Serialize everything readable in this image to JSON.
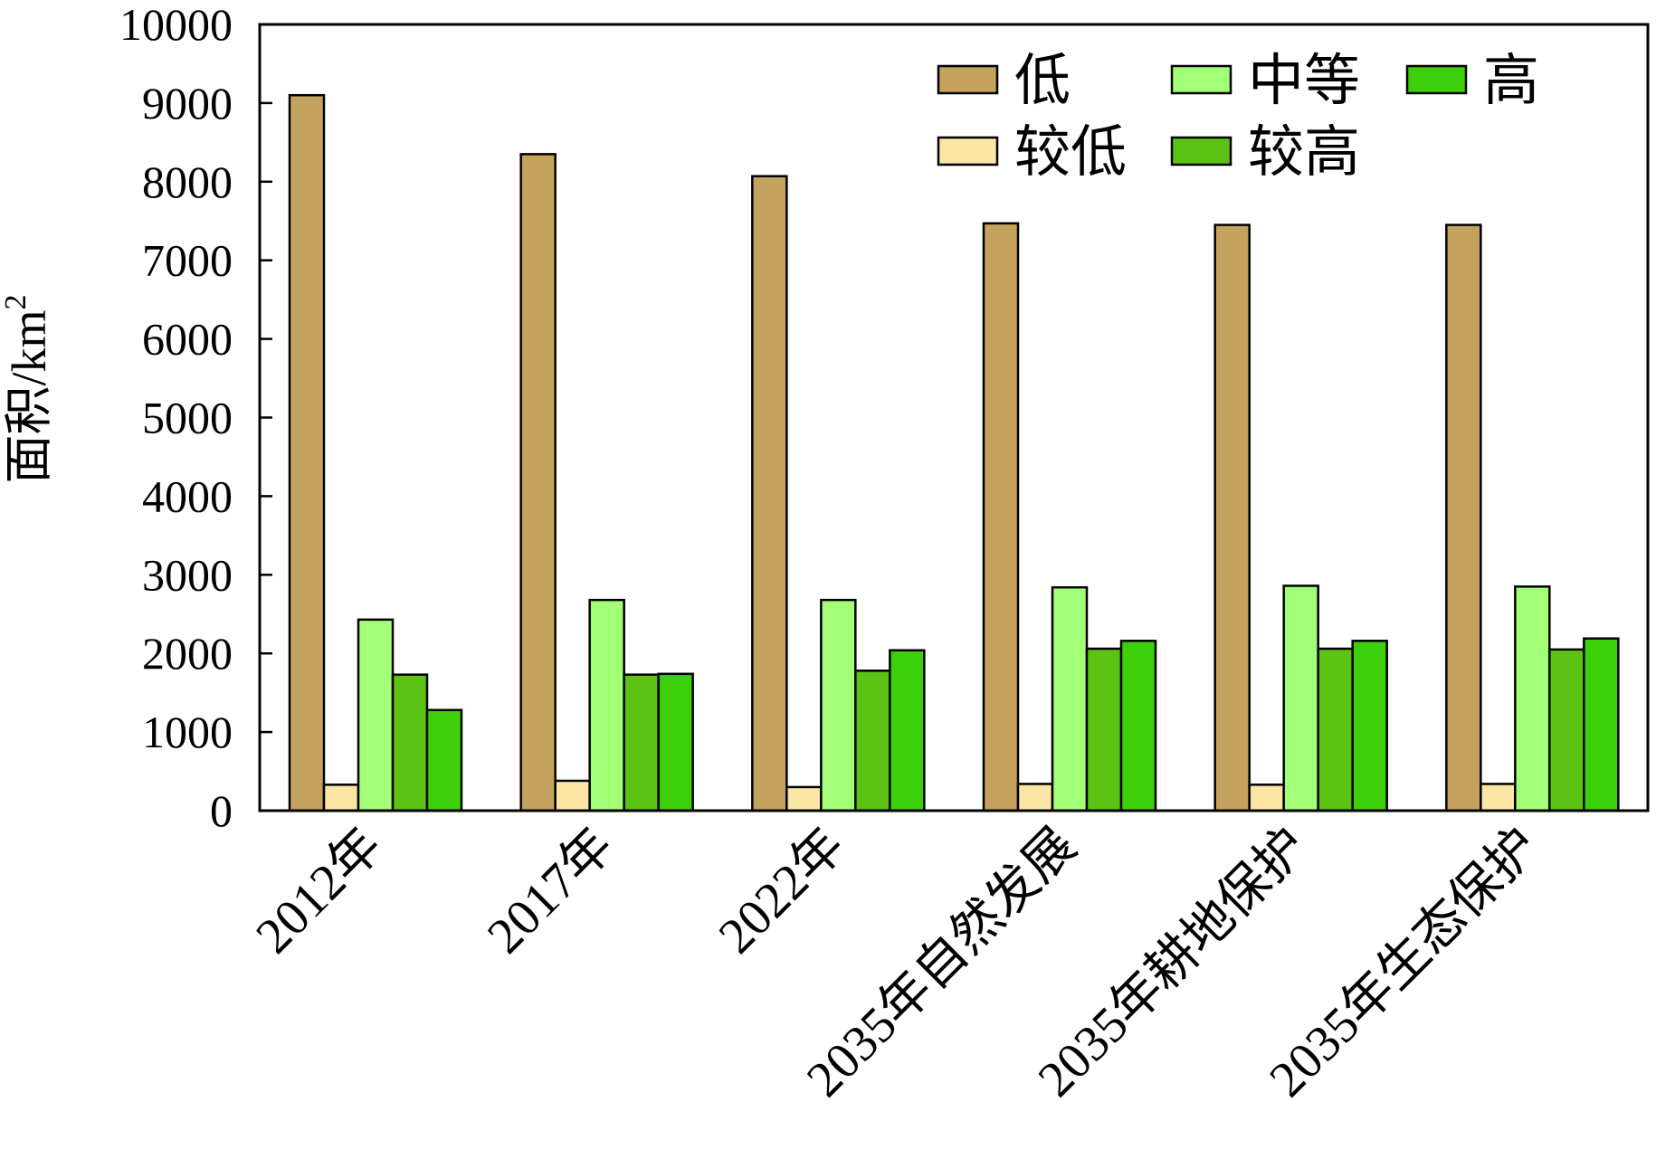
{
  "chart_data": {
    "type": "bar",
    "categories": [
      "2012年",
      "2017年",
      "2022年",
      "2035年自然发展",
      "2035年耕地保护",
      "2035年生态保护"
    ],
    "series": [
      {
        "name": "低",
        "color": "#c4a35f",
        "values": [
          9100,
          8350,
          8070,
          7470,
          7450,
          7450
        ]
      },
      {
        "name": "较低",
        "color": "#fbe6a6",
        "values": [
          330,
          380,
          300,
          340,
          330,
          340
        ]
      },
      {
        "name": "中等",
        "color": "#a3ff78",
        "values": [
          2430,
          2680,
          2680,
          2840,
          2860,
          2850
        ]
      },
      {
        "name": "较高",
        "color": "#5cc214",
        "values": [
          1730,
          1730,
          1780,
          2060,
          2060,
          2050
        ]
      },
      {
        "name": "高",
        "color": "#3ccf0a",
        "values": [
          1280,
          1740,
          2040,
          2160,
          2160,
          2190
        ]
      }
    ],
    "ylabel": "面积/km",
    "ylabel_sup": "2",
    "ylim": [
      0,
      10000
    ],
    "yticks": [
      "0",
      "1000",
      "2000",
      "3000",
      "4000",
      "5000",
      "6000",
      "7000",
      "8000",
      "9000",
      "10000"
    ],
    "legend": "top-right, 3 columns",
    "grid": false
  }
}
